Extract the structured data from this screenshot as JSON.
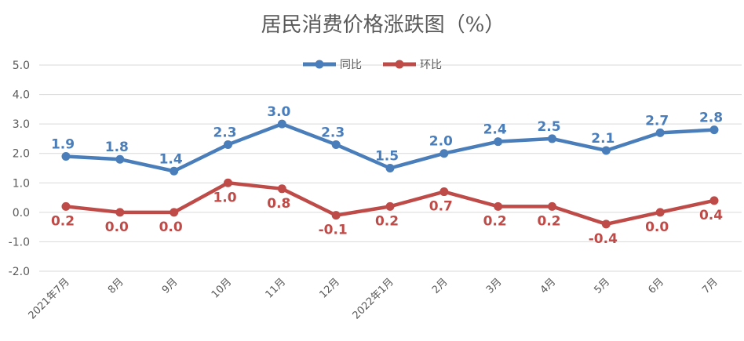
{
  "chart_data": {
    "type": "line",
    "title": "居民消费价格涨跌图（%）",
    "categories": [
      "2021年7月",
      "8月",
      "9月",
      "10月",
      "11月",
      "12月",
      "2022年1月",
      "2月",
      "3月",
      "4月",
      "5月",
      "6月",
      "7月"
    ],
    "series": [
      {
        "name": "同比",
        "color": "#4a7ebb",
        "values": [
          1.9,
          1.8,
          1.4,
          2.3,
          3.0,
          2.3,
          1.5,
          2.0,
          2.4,
          2.5,
          2.1,
          2.7,
          2.8
        ],
        "labels": [
          "1.9",
          "1.8",
          "1.4",
          "2.3",
          "3.0",
          "2.3",
          "1.5",
          "2.0",
          "2.4",
          "2.5",
          "2.1",
          "2.7",
          "2.8"
        ],
        "label_position": "above"
      },
      {
        "name": "环比",
        "color": "#be4b48",
        "values": [
          0.2,
          0.0,
          0.0,
          1.0,
          0.8,
          -0.1,
          0.2,
          0.7,
          0.2,
          0.2,
          -0.4,
          0.0,
          0.4
        ],
        "labels": [
          "0.2",
          "0.0",
          "0.0",
          "1.0",
          "0.8",
          "-0.1",
          "0.2",
          "0.7",
          "0.2",
          "0.2",
          "-0.4",
          "0.0",
          "0.4"
        ],
        "label_position": "below"
      }
    ],
    "yticks": [
      "5.0",
      "4.0",
      "3.0",
      "2.0",
      "1.0",
      "0.0",
      "-1.0",
      "-2.0"
    ],
    "ylim": [
      -2.0,
      5.0
    ],
    "grid": true,
    "legend": "top-center"
  }
}
